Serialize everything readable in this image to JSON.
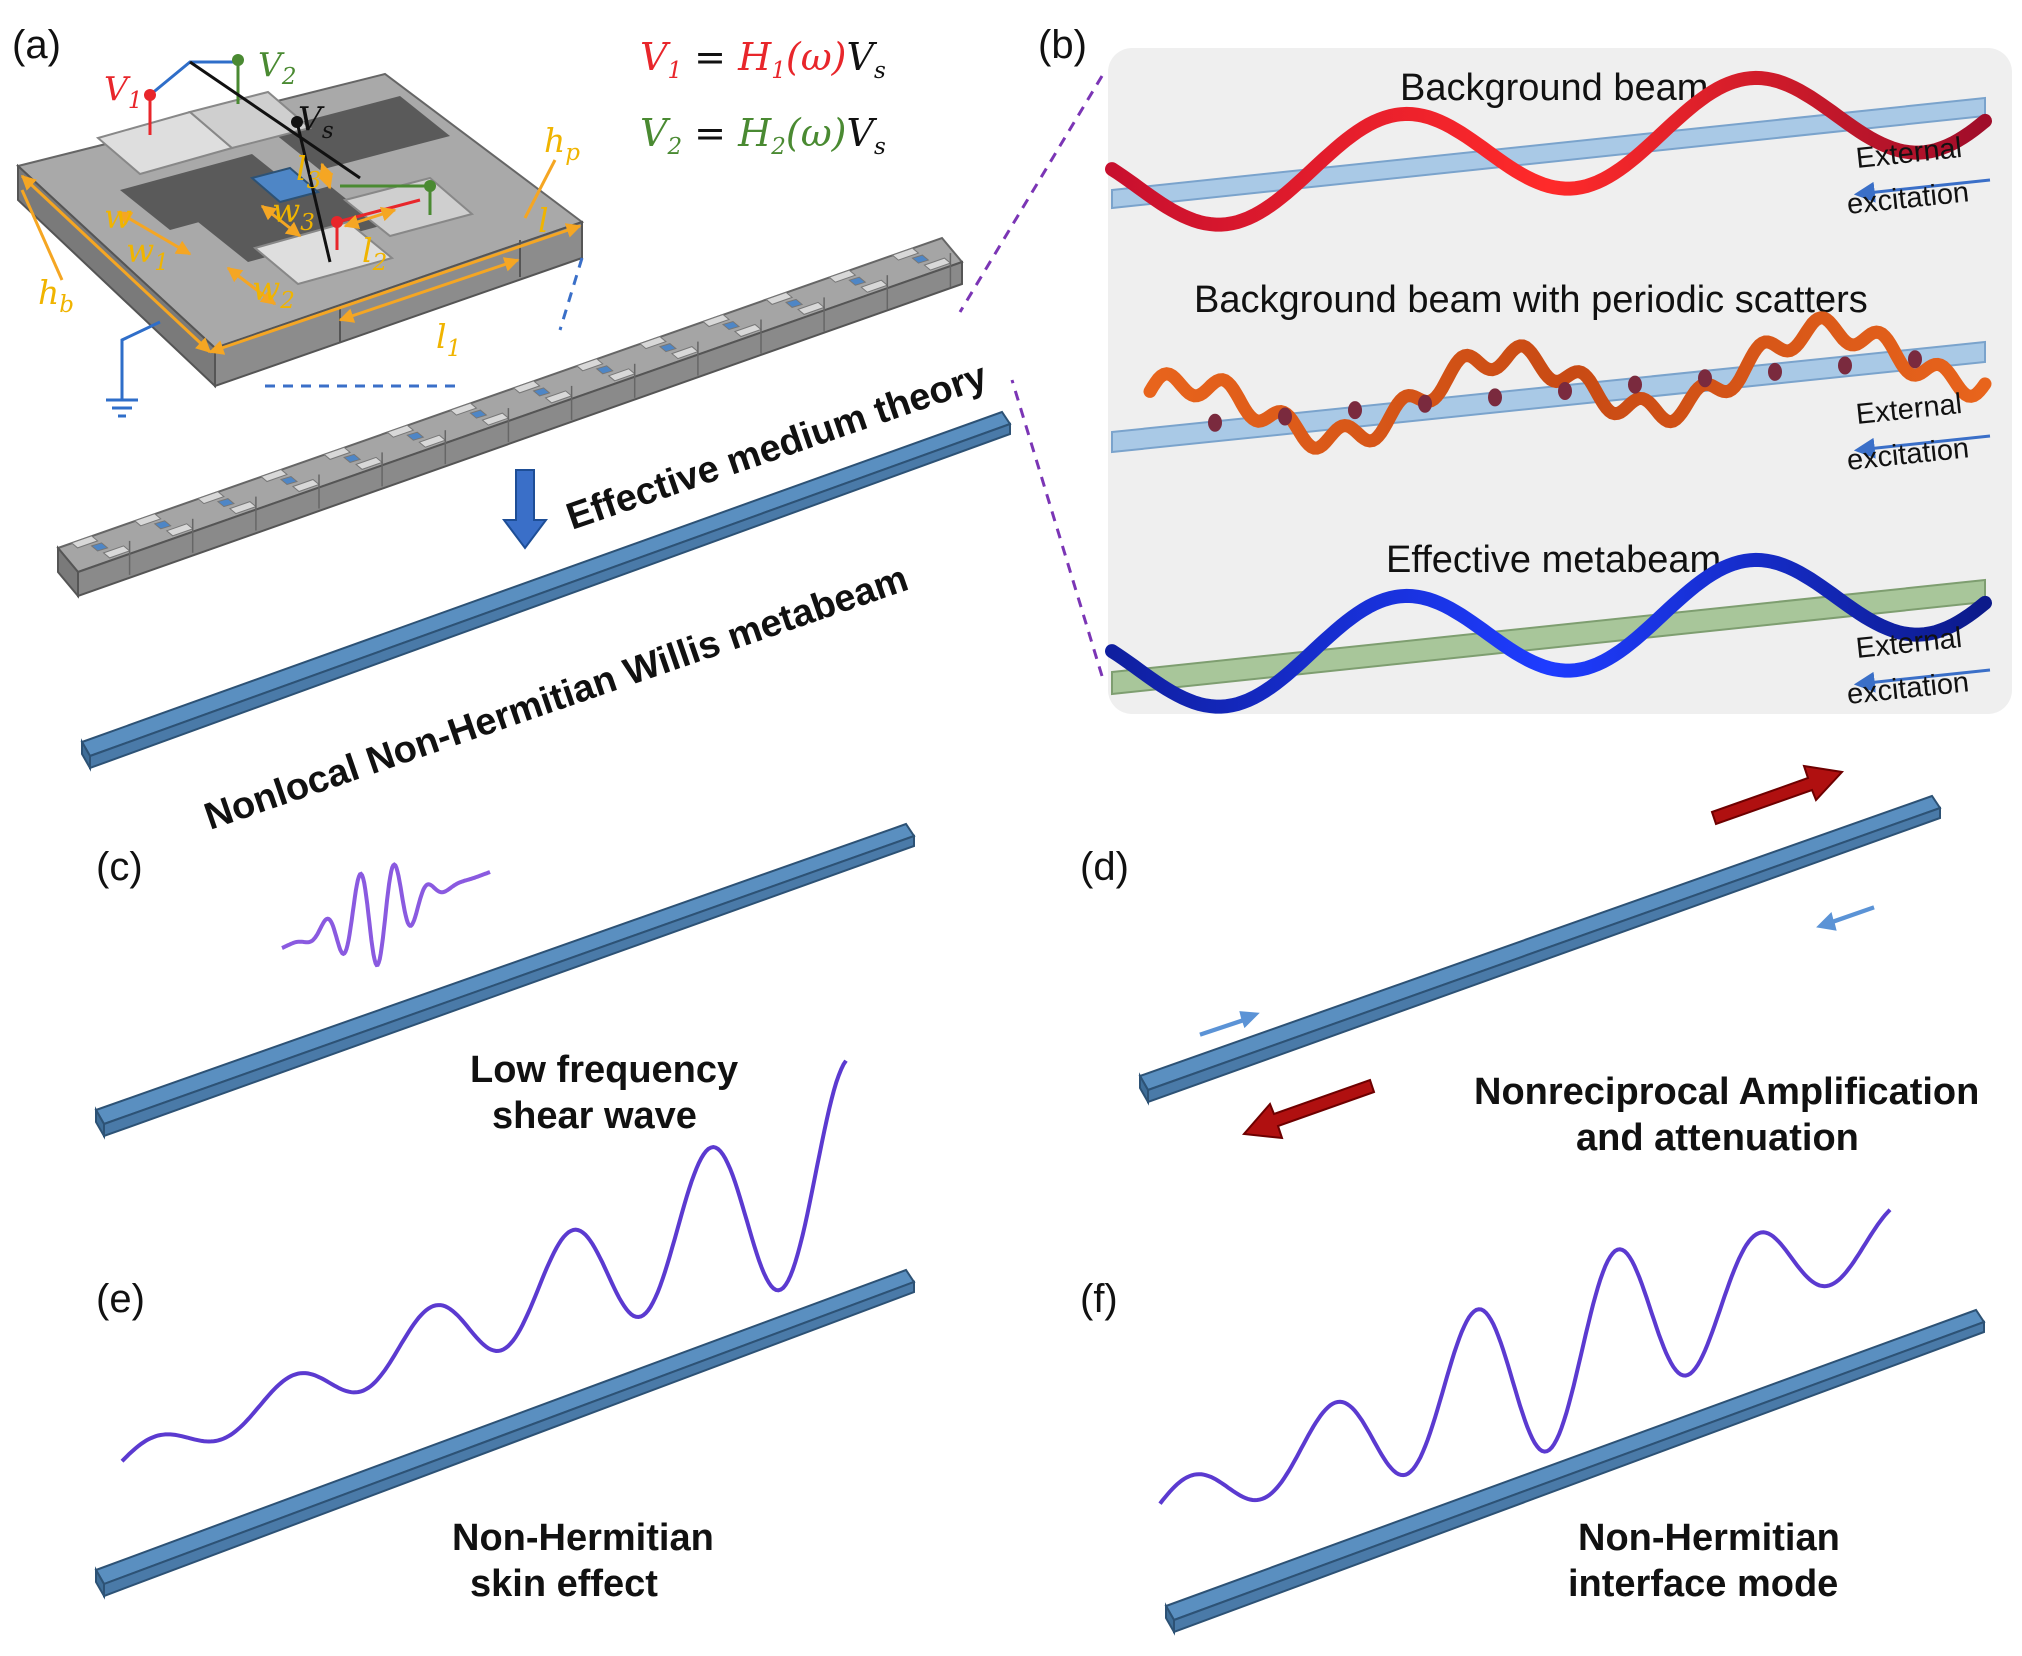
{
  "panels": {
    "a": "(a)",
    "b": "(b)",
    "c": "(c)",
    "d": "(d)",
    "e": "(e)",
    "f": "(f)"
  },
  "panel_a": {
    "v1": "V",
    "v1_sub": "1",
    "v2": "V",
    "v2_sub": "2",
    "vs": "V",
    "vs_sub": "s",
    "eq1": {
      "lhs": "V",
      "lhs_sub": "1",
      "mid": " = ",
      "h": "H",
      "h_sub": "1",
      "arg": "(ω)",
      "rhs": "V",
      "rhs_sub": "s"
    },
    "eq2": {
      "lhs": "V",
      "lhs_sub": "2",
      "mid": " = ",
      "h": "H",
      "h_sub": "2",
      "arg": "(ω)",
      "rhs": "V",
      "rhs_sub": "s"
    },
    "dims": {
      "w": "w",
      "w1": "w",
      "w1_sub": "1",
      "w2": "w",
      "w2_sub": "2",
      "w3": "w",
      "w3_sub": "3",
      "l": "l",
      "l1": "l",
      "l1_sub": "1",
      "l2": "l",
      "l2_sub": "2",
      "l3": "l",
      "l3_sub": "3",
      "hb": "h",
      "hb_sub": "b",
      "hp": "h",
      "hp_sub": "p"
    },
    "theory": "Effective medium theory",
    "metabeam": "Nonlocal Non-Hermitian Willis metabeam"
  },
  "panel_b": {
    "items": [
      {
        "title": "Background beam",
        "ext1": "External",
        "ext2": "excitation"
      },
      {
        "title": "Background beam with periodic scatters",
        "ext1": "External",
        "ext2": "excitation"
      },
      {
        "title": "Effective metabeam",
        "ext1": "External",
        "ext2": "excitation"
      }
    ]
  },
  "panel_c": {
    "line1": "Low frequency",
    "line2": "shear wave"
  },
  "panel_d": {
    "line1": "Nonreciprocal Amplification",
    "line2": "and attenuation"
  },
  "panel_e": {
    "line1": "Non-Hermitian",
    "line2": "skin effect"
  },
  "panel_f": {
    "line1": "Non-Hermitian",
    "line2": "interface mode"
  },
  "colors": {
    "beam": "#5a8fc0",
    "beam_edge": "#2d5275",
    "red": "#e8262b",
    "green": "#4a8a32",
    "orange": "#f5a623",
    "purple": "#7b35b5",
    "wave_purple": "#5b3ad0",
    "blue_wave": "#1030e8",
    "arrow_red": "#b01010",
    "arrow_blue": "#5b93d6"
  }
}
